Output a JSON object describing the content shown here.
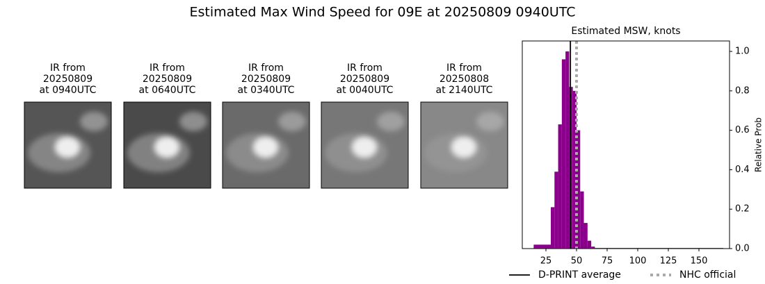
{
  "title": "Estimated Max Wind Speed for 09E at 20250809 0940UTC",
  "panels": [
    {
      "lines": [
        "IR from",
        "20250809",
        "at 0940UTC"
      ]
    },
    {
      "lines": [
        "IR from",
        "20250809",
        "at 0640UTC"
      ]
    },
    {
      "lines": [
        "IR from",
        "20250809",
        "at 0340UTC"
      ]
    },
    {
      "lines": [
        "IR from",
        "20250809",
        "at 0040UTC"
      ]
    },
    {
      "lines": [
        "IR from",
        "20250808",
        "at 2140UTC"
      ]
    }
  ],
  "chart_data": {
    "type": "histogram",
    "title": "Estimated MSW, knots",
    "bins": [
      15,
      29,
      32,
      35,
      38,
      41,
      44,
      47,
      50,
      53,
      56,
      59,
      62,
      65,
      170
    ],
    "values": [
      0.02,
      0.21,
      0.39,
      0.63,
      0.96,
      1.0,
      0.82,
      0.8,
      0.6,
      0.29,
      0.13,
      0.04,
      0.01,
      0.003
    ],
    "color": "#8b008b",
    "xlim": [
      5.7,
      175
    ],
    "xticks": [
      25,
      50,
      75,
      100,
      125,
      150
    ],
    "ylim": [
      0,
      1.053
    ],
    "yticks": [
      {
        "value": 0,
        "label": "0.0"
      },
      {
        "value": 0.2,
        "label": "0.2"
      },
      {
        "value": 0.4,
        "label": "0.4"
      },
      {
        "value": 0.6,
        "label": "0.6"
      },
      {
        "value": 0.8,
        "label": "0.8"
      },
      {
        "value": 1.0,
        "label": "1.0"
      }
    ],
    "y_axis_side": "right",
    "ylabel": "Relative Prob",
    "grid": false,
    "lines": [
      {
        "name": "D-PRINT average",
        "value": 45,
        "color": "#000000",
        "style": "solid"
      },
      {
        "name": "NHC official",
        "value": 50,
        "color": "#aaaaaa",
        "style": "dotted"
      }
    ]
  }
}
